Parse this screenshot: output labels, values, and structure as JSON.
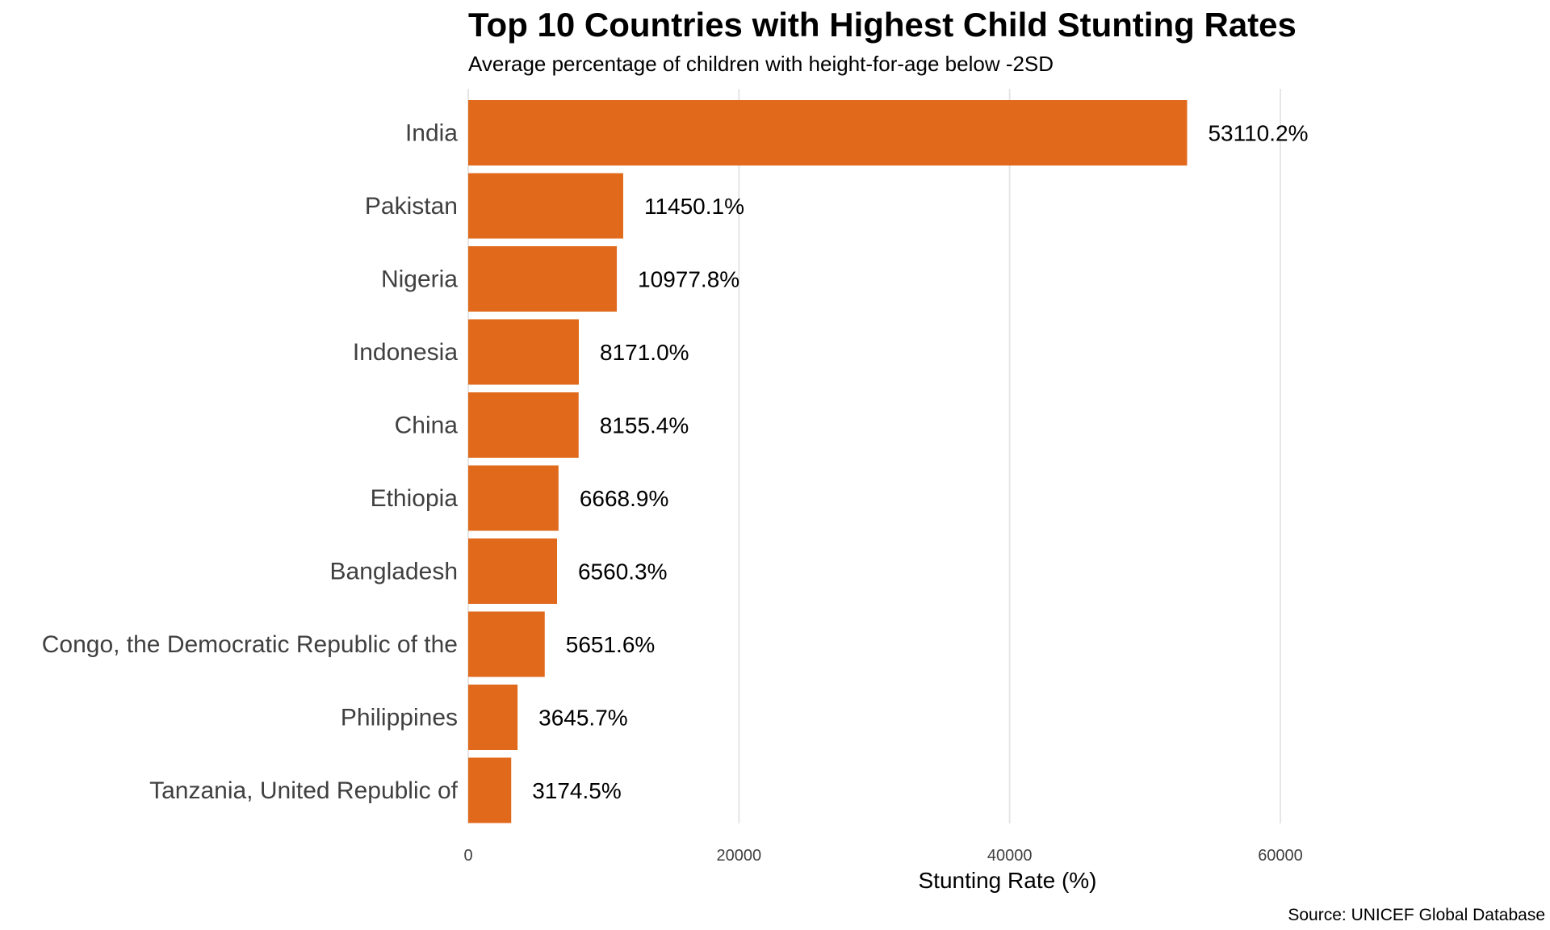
{
  "chart_data": {
    "type": "bar",
    "orientation": "horizontal",
    "title": "Top 10 Countries with Highest Child Stunting Rates",
    "subtitle": "Average percentage of children with height-for-age below -2SD",
    "xlabel": "Stunting Rate (%)",
    "ylabel": "",
    "caption": "Source: UNICEF Global Database",
    "categories": [
      "India",
      "Pakistan",
      "Nigeria",
      "Indonesia",
      "China",
      "Ethiopia",
      "Bangladesh",
      "Congo, the Democratic Republic of the",
      "Philippines",
      "Tanzania, United Republic of"
    ],
    "values": [
      53110.2,
      11450.1,
      10977.8,
      8171.0,
      8155.4,
      6668.9,
      6560.3,
      5651.6,
      3645.7,
      3174.5
    ],
    "value_labels": [
      "53110.2%",
      "11450.1%",
      "10977.8%",
      "8171.0%",
      "8155.4%",
      "6668.9%",
      "6560.3%",
      "5651.6%",
      "3645.7%",
      "3174.5%"
    ],
    "xlim": [
      0,
      70000
    ],
    "x_ticks": [
      0,
      20000,
      40000,
      60000
    ],
    "x_tick_labels": [
      "0",
      "20000",
      "40000",
      "60000"
    ],
    "grid": "vertical-major",
    "legend": "none",
    "colors": {
      "bar": "#e0691b",
      "grid": "#e6e6e6",
      "category_text": "#404040",
      "label_text": "#000000"
    }
  }
}
